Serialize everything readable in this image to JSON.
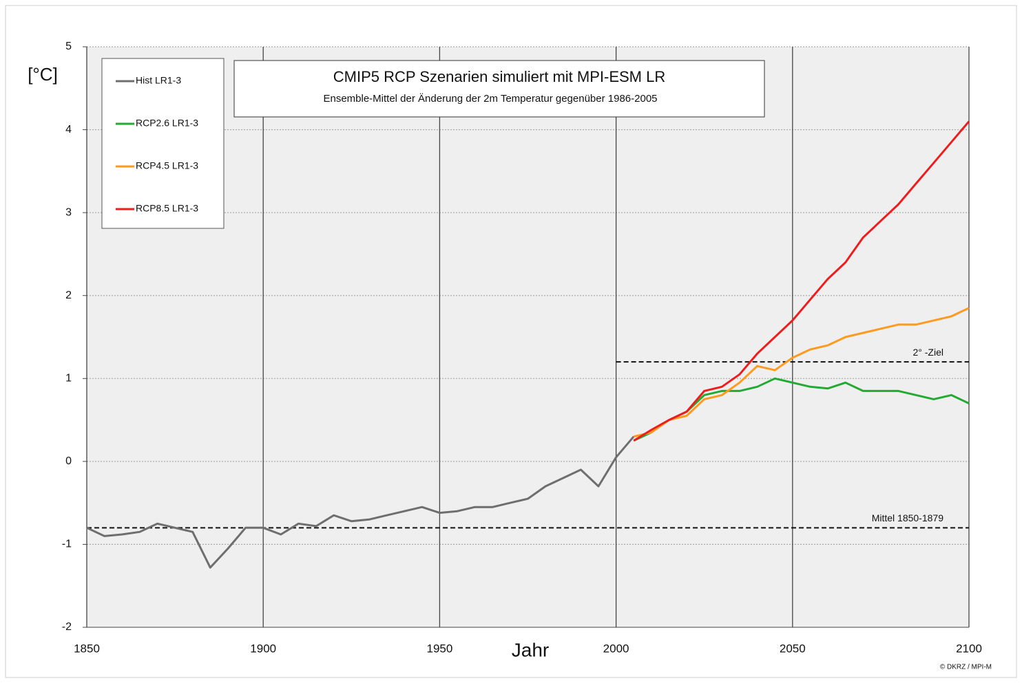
{
  "chart_data": {
    "type": "line",
    "title": "CMIP5 RCP Szenarien simuliert mit MPI-ESM LR",
    "subtitle": "Ensemble-Mittel der Änderung der 2m Temperatur gegenüber 1986-2005",
    "x_label": "Jahr",
    "y_label": "[°C]",
    "credit": "© DKRZ / MPI-M",
    "x": [
      1850,
      1855,
      1860,
      1865,
      1870,
      1875,
      1880,
      1885,
      1890,
      1895,
      1900,
      1905,
      1910,
      1915,
      1920,
      1925,
      1930,
      1935,
      1940,
      1945,
      1950,
      1955,
      1960,
      1965,
      1970,
      1975,
      1980,
      1985,
      1990,
      1995,
      2000,
      2005,
      2010,
      2015,
      2020,
      2025,
      2030,
      2035,
      2040,
      2045,
      2050,
      2055,
      2060,
      2065,
      2070,
      2075,
      2080,
      2085,
      2090,
      2095,
      2100
    ],
    "series": [
      {
        "name": "Hist LR1-3",
        "color": "#6e6e6e",
        "values": [
          -0.8,
          -0.9,
          -0.88,
          -0.85,
          -0.75,
          -0.8,
          -0.85,
          -1.28,
          -1.05,
          -0.8,
          -0.8,
          -0.88,
          -0.75,
          -0.78,
          -0.65,
          -0.72,
          -0.7,
          -0.65,
          -0.6,
          -0.55,
          -0.62,
          -0.6,
          -0.55,
          -0.55,
          -0.5,
          -0.45,
          -0.3,
          -0.2,
          -0.1,
          -0.3,
          0.05,
          0.3,
          null,
          null,
          null,
          null,
          null,
          null,
          null,
          null,
          null,
          null,
          null,
          null,
          null,
          null,
          null,
          null,
          null,
          null,
          null
        ]
      },
      {
        "name": "RCP2.6 LR1-3",
        "color": "#22aa33",
        "values": [
          null,
          null,
          null,
          null,
          null,
          null,
          null,
          null,
          null,
          null,
          null,
          null,
          null,
          null,
          null,
          null,
          null,
          null,
          null,
          null,
          null,
          null,
          null,
          null,
          null,
          null,
          null,
          null,
          null,
          null,
          null,
          0.25,
          0.35,
          0.5,
          0.6,
          0.8,
          0.85,
          0.85,
          0.9,
          1.0,
          0.95,
          0.9,
          0.88,
          0.95,
          0.85,
          0.85,
          0.85,
          0.8,
          0.75,
          0.8,
          0.7
        ]
      },
      {
        "name": "RCP4.5 LR1-3",
        "color": "#ff9a1f",
        "values": [
          null,
          null,
          null,
          null,
          null,
          null,
          null,
          null,
          null,
          null,
          null,
          null,
          null,
          null,
          null,
          null,
          null,
          null,
          null,
          null,
          null,
          null,
          null,
          null,
          null,
          null,
          null,
          null,
          null,
          null,
          null,
          0.3,
          0.35,
          0.5,
          0.55,
          0.75,
          0.8,
          0.95,
          1.15,
          1.1,
          1.25,
          1.35,
          1.4,
          1.5,
          1.55,
          1.6,
          1.65,
          1.65,
          1.7,
          1.75,
          1.85
        ]
      },
      {
        "name": "RCP8.5 LR1-3",
        "color": "#ee1c1c",
        "values": [
          null,
          null,
          null,
          null,
          null,
          null,
          null,
          null,
          null,
          null,
          null,
          null,
          null,
          null,
          null,
          null,
          null,
          null,
          null,
          null,
          null,
          null,
          null,
          null,
          null,
          null,
          null,
          null,
          null,
          null,
          null,
          0.25,
          0.38,
          0.5,
          0.6,
          0.85,
          0.9,
          1.05,
          1.3,
          1.5,
          1.7,
          1.95,
          2.2,
          2.4,
          2.7,
          2.9,
          3.1,
          3.35,
          3.6,
          3.85,
          4.1
        ]
      }
    ],
    "reference_lines": [
      {
        "label": "Mittel 1850-1879",
        "value": -0.8,
        "x": [
          1850,
          2100
        ]
      },
      {
        "label": "2° -Ziel",
        "value": 1.2,
        "x": [
          2000,
          2100
        ]
      }
    ],
    "xlim": [
      1850,
      2100
    ],
    "xticks": [
      1850,
      1900,
      1950,
      2000,
      2050,
      2100
    ],
    "ylim": [
      -2,
      5
    ],
    "yticks": [
      -2,
      -1,
      0,
      1,
      2,
      3,
      4,
      5
    ],
    "grid": true
  }
}
